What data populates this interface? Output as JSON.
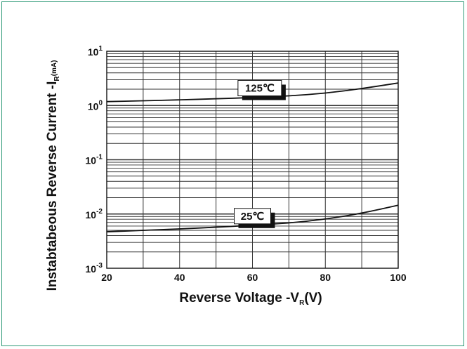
{
  "chart_data": {
    "type": "line",
    "xlabel": {
      "main": "Reverse  Voltage -V",
      "sub": "R",
      "unit": "(V)"
    },
    "ylabel": {
      "main": "Instabtabeous Reverse Current -I",
      "sub": "R",
      "unit": "(mA)"
    },
    "x_ticks": [
      "20",
      "40",
      "60",
      "80",
      "100"
    ],
    "y_ticks": [
      {
        "base": "10",
        "exp": "1"
      },
      {
        "base": "10",
        "exp": "0"
      },
      {
        "base": "10",
        "exp": "-1"
      },
      {
        "base": "10",
        "exp": "-2"
      },
      {
        "base": "10",
        "exp": "-3"
      }
    ],
    "xlim": [
      20,
      100
    ],
    "ylim": [
      0.001,
      10
    ],
    "yscale": "log",
    "grid": true,
    "series": [
      {
        "name": "125℃",
        "x": [
          20,
          30,
          40,
          50,
          60,
          70,
          80,
          90,
          100
        ],
        "y": [
          1.18,
          1.22,
          1.27,
          1.33,
          1.4,
          1.5,
          1.68,
          2.05,
          2.6
        ]
      },
      {
        "name": "25℃",
        "x": [
          20,
          30,
          40,
          50,
          60,
          70,
          80,
          90,
          100
        ],
        "y": [
          0.0047,
          0.005,
          0.0053,
          0.0057,
          0.0062,
          0.0068,
          0.008,
          0.0103,
          0.0145
        ]
      }
    ],
    "annotations": [
      {
        "text": "125℃",
        "series": 0,
        "x": 62
      },
      {
        "text": "25℃",
        "series": 1,
        "x": 60
      }
    ]
  }
}
